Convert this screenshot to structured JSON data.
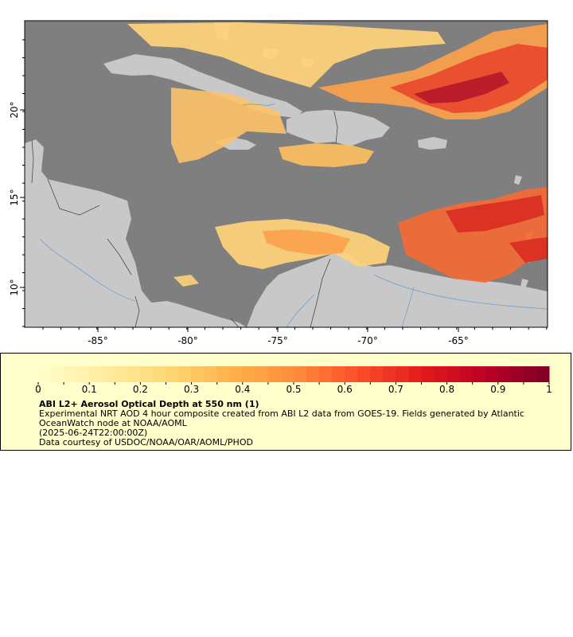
{
  "map": {
    "longitude_labels": [
      "-85°",
      "-80°",
      "-75°",
      "-70°",
      "-65°"
    ],
    "latitude_labels": [
      "20°",
      "15°",
      "10°"
    ],
    "colors": {
      "ocean": "#7f7f7f",
      "land": "#c8c8c8",
      "rivers": "#6f9ed0",
      "borders": "#4a4a4a",
      "frame": "#000000"
    }
  },
  "colorbar": {
    "tick_labels": [
      "0",
      "0.1",
      "0.2",
      "0.3",
      "0.4",
      "0.5",
      "0.6",
      "0.7",
      "0.8",
      "0.9",
      "1"
    ],
    "range": [
      0,
      1
    ],
    "colormap": "YlOrRd"
  },
  "legend": {
    "title": "ABI L2+ Aerosol Optical Depth at 550 nm (1)",
    "description": "Experimental NRT AOD 4 hour composite created from ABI L2 data from GOES-19. Fields generated by Atlantic OceanWatch node at NOAA/AOML",
    "timestamp": "(2025-06-24T22:00:00Z)",
    "credit": "Data courtesy of USDOC/NOAA/OAR/AOML/PHOD",
    "background": "#ffffcc"
  }
}
